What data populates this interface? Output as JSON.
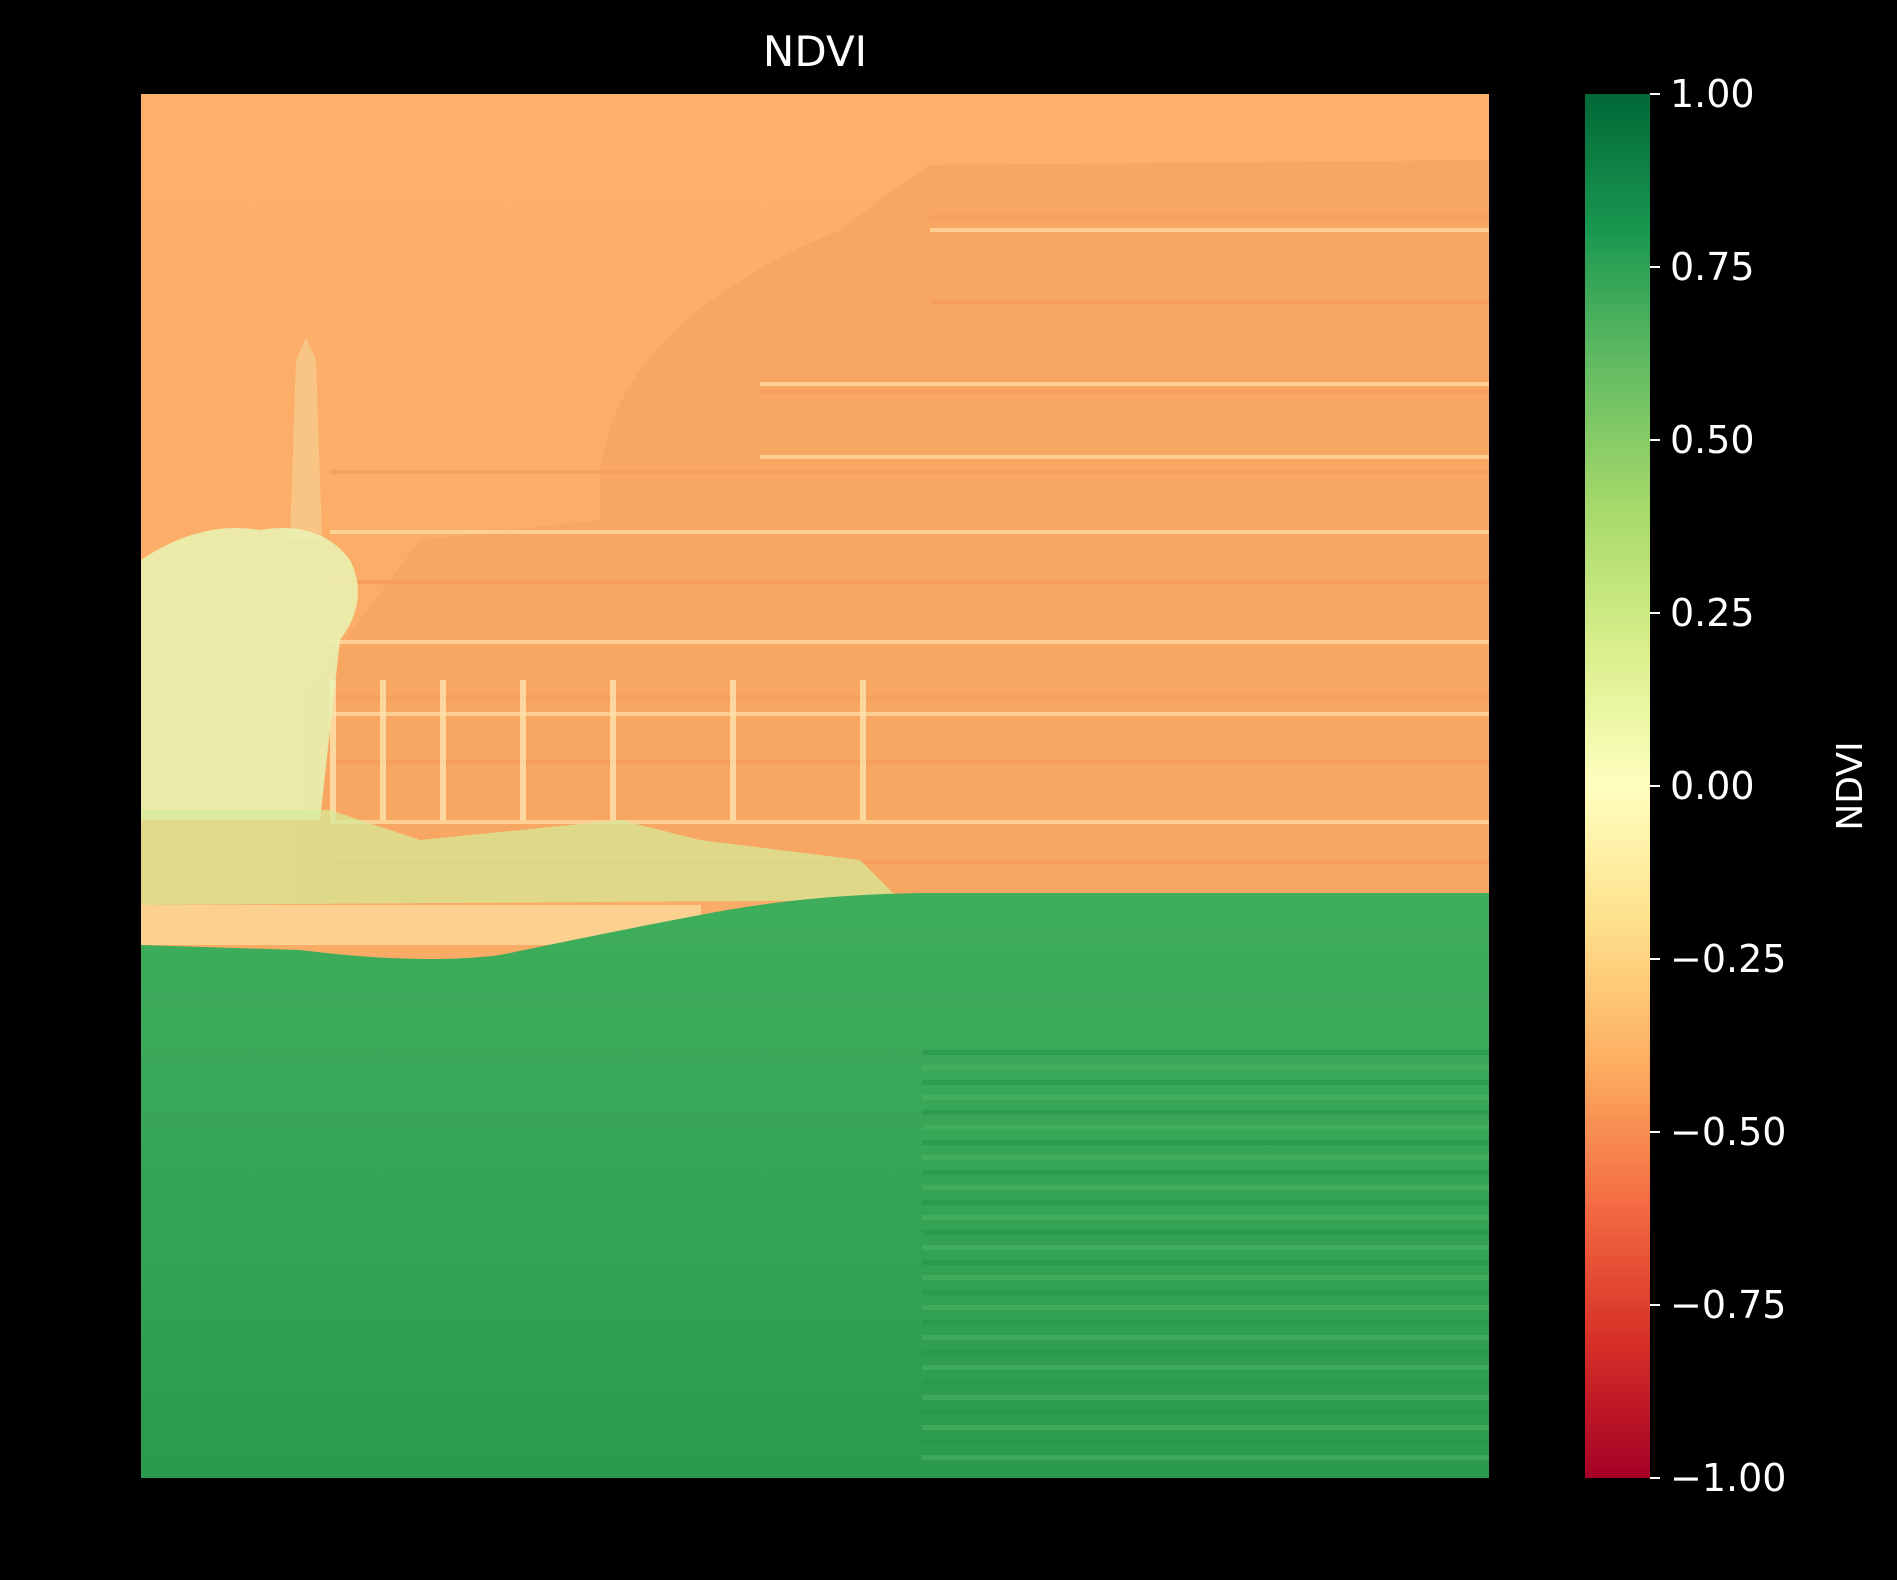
{
  "chart_data": {
    "type": "heatmap",
    "title": "NDVI",
    "xlabel": "",
    "ylabel": "",
    "colorbar": {
      "label": "NDVI",
      "range": [
        -1.0,
        1.0
      ],
      "ticks": [
        1.0,
        0.75,
        0.5,
        0.25,
        0.0,
        -0.25,
        -0.5,
        -0.75,
        -1.0
      ],
      "tick_labels": [
        "1.00",
        "0.75",
        "0.50",
        "0.25",
        "0.00",
        "−0.25",
        "−0.50",
        "−0.75",
        "−1.00"
      ],
      "colormap": "RdYlGn",
      "colors": [
        "#a50026",
        "#d73027",
        "#f46d43",
        "#fdae61",
        "#fee08b",
        "#ffffbf",
        "#d9ef8b",
        "#a6d96a",
        "#66bd63",
        "#1a9850",
        "#006837"
      ]
    },
    "regions": {
      "sky": -0.4,
      "building": -0.35,
      "trees": 0.15,
      "grass": 0.6
    },
    "grid": false
  },
  "colors": {
    "background": "#000000",
    "text": "#ffffff"
  }
}
